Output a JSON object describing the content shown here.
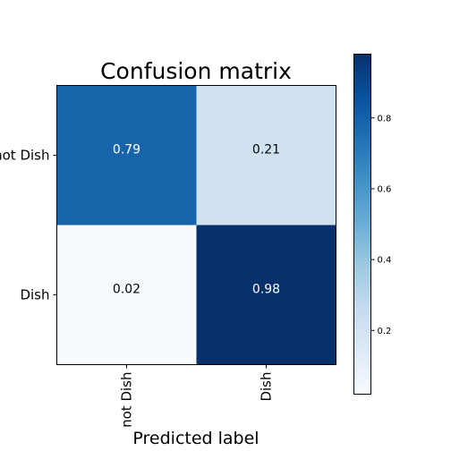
{
  "chart_data": {
    "type": "heatmap",
    "title": "Confusion matrix",
    "xlabel": "Predicted label",
    "ylabel": "",
    "x_categories": [
      "not Dish",
      "Dish"
    ],
    "y_categories": [
      "not Dish",
      "Dish"
    ],
    "values": [
      [
        0.79,
        0.21
      ],
      [
        0.02,
        0.98
      ]
    ],
    "value_labels": [
      [
        "0.79",
        "0.21"
      ],
      [
        "0.02",
        "0.98"
      ]
    ],
    "colormap": "Blues",
    "colorbar": {
      "range": [
        0.02,
        0.98
      ],
      "ticks": [
        0.2,
        0.4,
        0.6,
        0.8
      ],
      "tick_labels": [
        "0.2",
        "0.4",
        "0.6",
        "0.8"
      ]
    },
    "colors": {
      "low": "#f7fbff",
      "high": "#08306b",
      "text_dark": "#000000",
      "text_light": "#ffffff"
    }
  }
}
